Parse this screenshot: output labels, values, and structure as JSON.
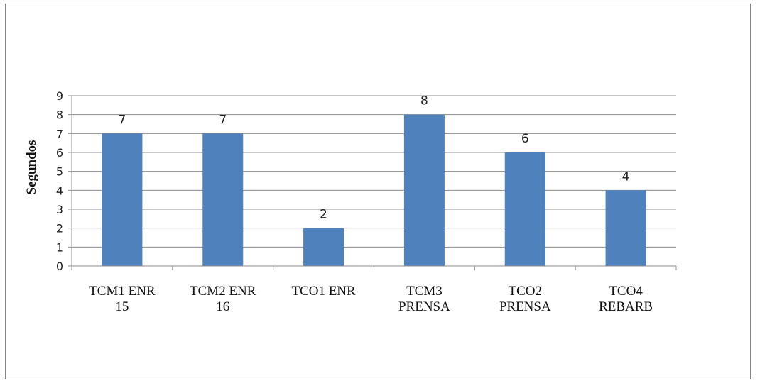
{
  "chart_data": {
    "type": "bar",
    "title": "",
    "xlabel": "",
    "ylabel": "Segundos",
    "categories": [
      [
        "TCM1 ENR",
        "15"
      ],
      [
        "TCM2 ENR",
        "16"
      ],
      [
        "TCO1 ENR"
      ],
      [
        "TCM3",
        "PRENSA"
      ],
      [
        "TCO2",
        "PRENSA"
      ],
      [
        "TCO4",
        "REBARB"
      ]
    ],
    "values": [
      7,
      7,
      2,
      8,
      6,
      4
    ],
    "ylim": [
      0,
      9
    ],
    "yticks": [
      0,
      1,
      2,
      3,
      4,
      5,
      6,
      7,
      8,
      9
    ],
    "grid": true,
    "legend": "none",
    "data_labels": true,
    "colors": {
      "bar": "#4F81BD",
      "grid": "#8C8C8C",
      "axis": "#8C8C8C"
    }
  }
}
